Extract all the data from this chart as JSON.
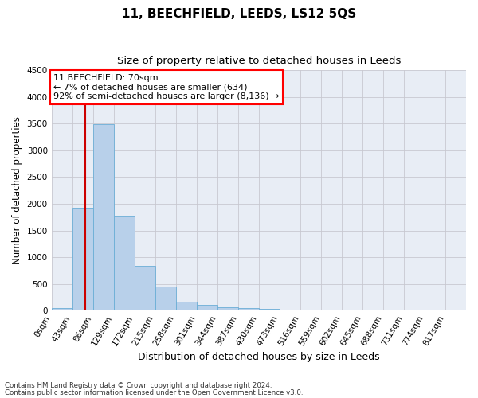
{
  "title": "11, BEECHFIELD, LEEDS, LS12 5QS",
  "subtitle": "Size of property relative to detached houses in Leeds",
  "xlabel": "Distribution of detached houses by size in Leeds",
  "ylabel": "Number of detached properties",
  "footnote1": "Contains HM Land Registry data © Crown copyright and database right 2024.",
  "footnote2": "Contains public sector information licensed under the Open Government Licence v3.0.",
  "annotation_title": "11 BEECHFIELD: 70sqm",
  "annotation_line1": "← 7% of detached houses are smaller (634)",
  "annotation_line2": "92% of semi-detached houses are larger (8,136) →",
  "bar_color": "#b8d0ea",
  "bar_edge_color": "#6baed6",
  "vline_color": "#cc0000",
  "vline_x": 70,
  "bin_edges": [
    0,
    43,
    86,
    129,
    172,
    215,
    258,
    301,
    344,
    387,
    430,
    473,
    516,
    559,
    602,
    645,
    688,
    731,
    774,
    817,
    860
  ],
  "bar_heights": [
    50,
    1920,
    3490,
    1770,
    840,
    455,
    160,
    100,
    65,
    50,
    25,
    15,
    10,
    5,
    3,
    2,
    1,
    1,
    0,
    0
  ],
  "ylim": [
    0,
    4500
  ],
  "yticks": [
    0,
    500,
    1000,
    1500,
    2000,
    2500,
    3000,
    3500,
    4000,
    4500
  ],
  "ax_facecolor": "#e8edf5",
  "background_color": "#ffffff",
  "grid_color": "#c8c8d0",
  "title_fontsize": 11,
  "subtitle_fontsize": 9.5,
  "xlabel_fontsize": 9,
  "ylabel_fontsize": 8.5,
  "tick_label_fontsize": 7.5,
  "annotation_fontsize": 8
}
